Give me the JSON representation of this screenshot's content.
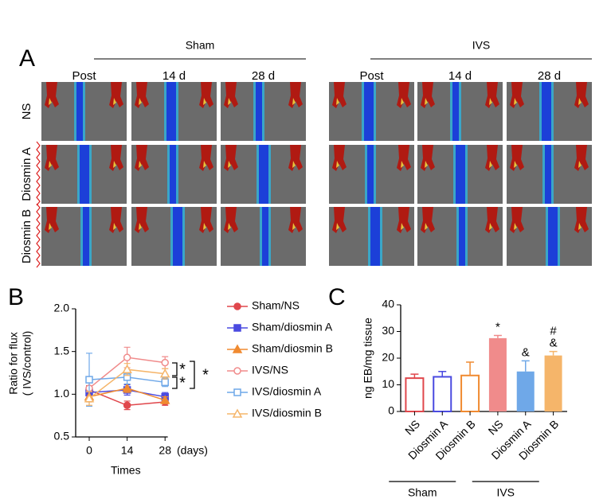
{
  "panel_a": {
    "label": "A",
    "groups": [
      {
        "title": "Sham",
        "columns": [
          "Post",
          "14 d",
          "28 d"
        ]
      },
      {
        "title": "IVS",
        "columns": [
          "Post",
          "14 d",
          "28 d"
        ]
      }
    ],
    "rows": [
      "NS",
      "Diosmin A",
      "Diosmin B"
    ]
  },
  "chart_data": [
    {
      "type": "line",
      "panel_label": "B",
      "x_label": "Times",
      "x_unit": "(days)",
      "y_label": [
        "Ratio for flux",
        "( IVS/control)"
      ],
      "x": [
        0,
        14,
        28
      ],
      "xlim": [
        -5,
        29
      ],
      "xticks": [
        0,
        14,
        28
      ],
      "ylim": [
        0.5,
        2.0
      ],
      "yticks": [
        0.5,
        {
          "value": 1,
          "label": "1.0"
        },
        1.5,
        {
          "value": 2,
          "label": "2.0"
        }
      ],
      "series": [
        {
          "name": "Sham/NS",
          "color": "#e0474c",
          "marker": "circle",
          "filled": true,
          "values": [
            1.05,
            0.87,
            0.91
          ],
          "errors": [
            0.05,
            0.05,
            0.04
          ]
        },
        {
          "name": "Sham/diosmin A",
          "color": "#4a4ae0",
          "marker": "square",
          "filled": true,
          "values": [
            1.02,
            1.05,
            0.97
          ],
          "errors": [
            0.05,
            0.06,
            0.05
          ]
        },
        {
          "name": "Sham/diosmin B",
          "color": "#f08a30",
          "marker": "triangle",
          "filled": true,
          "values": [
            0.97,
            1.07,
            0.93
          ],
          "errors": [
            0.06,
            0.05,
            0.04
          ]
        },
        {
          "name": "IVS/NS",
          "color": "#f08b8b",
          "marker": "circle",
          "filled": false,
          "values": [
            1.07,
            1.43,
            1.37
          ],
          "errors": [
            0.1,
            0.12,
            0.07
          ]
        },
        {
          "name": "IVS/diosmin A",
          "color": "#6fa8e8",
          "marker": "square",
          "filled": false,
          "values": [
            1.17,
            1.2,
            1.14
          ],
          "errors": [
            0.31,
            0.08,
            0.05
          ]
        },
        {
          "name": "IVS/diosmin B",
          "color": "#f5b56a",
          "marker": "triangle",
          "filled": false,
          "values": [
            0.95,
            1.29,
            1.24
          ],
          "errors": [
            0.08,
            0.07,
            0.06
          ]
        }
      ],
      "annotations": [
        "*",
        "*",
        "*"
      ]
    },
    {
      "type": "bar",
      "panel_label": "C",
      "y_label": "ng EB/mg tissue",
      "categories": [
        "NS",
        "Diosmin A",
        "Diosmin B",
        "NS",
        "Diosmin A",
        "Diosmin B"
      ],
      "group_labels": [
        "Sham",
        "IVS"
      ],
      "values": [
        12.5,
        13,
        13.5,
        27.5,
        15,
        21
      ],
      "errors": [
        1.5,
        2,
        5,
        1,
        4,
        1.5
      ],
      "colors": [
        "#e0474c",
        "#4a4ae0",
        "#f08a30",
        "#f08b8b",
        "#6fa8e8",
        "#f5b56a"
      ],
      "filled": [
        false,
        false,
        false,
        true,
        true,
        true
      ],
      "bar_marks": [
        [],
        [],
        [],
        [
          "*"
        ],
        [
          "&"
        ],
        [
          "#",
          "&"
        ]
      ],
      "ylim": [
        0,
        40
      ],
      "yticks": [
        0,
        10,
        20,
        30,
        40
      ]
    }
  ]
}
